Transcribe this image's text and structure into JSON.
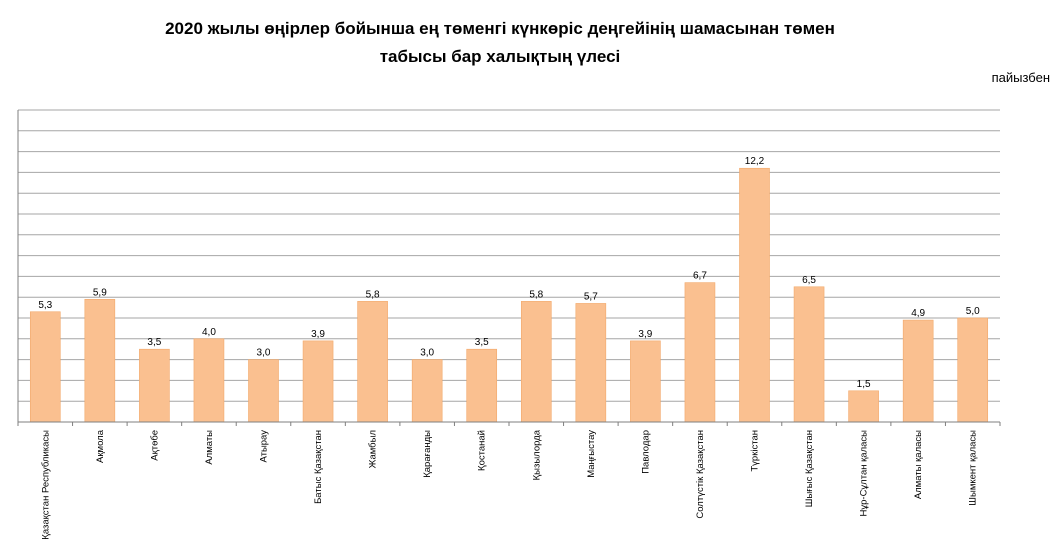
{
  "title_line1": "2020 жылы өңірлер бойынша ең төменгі күнкөріс деңгейінің шамасынан төмен",
  "title_line2": "табысы бар халықтың үлесі",
  "unit": "пайызбен",
  "colors": {
    "bar": "#FAC090",
    "bar_stroke": "#F2A86A",
    "grid": "#A6A6A6",
    "axis": "#7F7F7F"
  },
  "chart_data": {
    "type": "bar",
    "title": "2020 жылы өңірлер бойынша ең төменгі күнкөріс деңгейінің шамасынан төмен табысы бар халықтың үлесі",
    "ylabel": "пайызбен",
    "ylim": [
      0,
      15
    ],
    "grid": true,
    "categories": [
      "Қазақстан Республикасы",
      "Ақмола",
      "Ақтөбе",
      "Алматы",
      "Атырау",
      "Батыс Қазақстан",
      "Жамбыл",
      "Қарағанды",
      "Қостанай",
      "Қызылорда",
      "Маңғыстау",
      "Павлодар",
      "Солтүстік Қазақстан",
      "Түркістан",
      "Шығыс Қазақстан",
      "Нұр-Сұлтан қаласы",
      "Алматы қаласы",
      "Шымкент қаласы"
    ],
    "values": [
      5.3,
      5.9,
      3.5,
      4.0,
      3.0,
      3.9,
      5.8,
      3.0,
      3.5,
      5.8,
      5.7,
      3.9,
      6.7,
      12.2,
      6.5,
      1.5,
      4.9,
      5.0
    ],
    "labels": [
      "5,3",
      "5,9",
      "3,5",
      "4,0",
      "3,0",
      "3,9",
      "5,8",
      "3,0",
      "3,5",
      "5,8",
      "5,7",
      "3,9",
      "6,7",
      "12,2",
      "6,5",
      "1,5",
      "4,9",
      "5,0"
    ]
  }
}
